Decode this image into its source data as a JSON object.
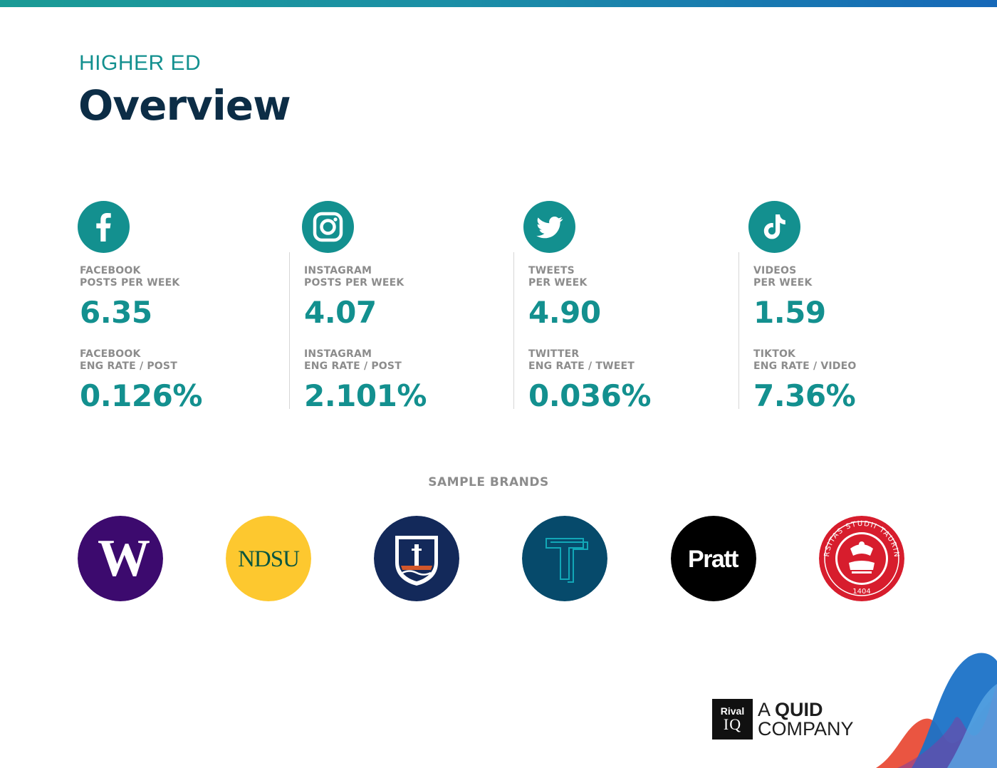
{
  "header": {
    "kicker": "HIGHER ED",
    "title": "Overview"
  },
  "stats": [
    {
      "platform": "facebook",
      "icon": "facebook-icon",
      "label1_line1": "FACEBOOK",
      "label1_line2": "POSTS PER WEEK",
      "value1": "6.35",
      "label2_line1": "FACEBOOK",
      "label2_line2": "ENG RATE / POST",
      "value2": "0.126%"
    },
    {
      "platform": "instagram",
      "icon": "instagram-icon",
      "label1_line1": "INSTAGRAM",
      "label1_line2": "POSTS PER WEEK",
      "value1": "4.07",
      "label2_line1": "INSTAGRAM",
      "label2_line2": "ENG RATE / POST",
      "value2": "2.101%"
    },
    {
      "platform": "twitter",
      "icon": "twitter-icon",
      "label1_line1": "TWEETS",
      "label1_line2": "PER WEEK",
      "value1": "4.90",
      "label2_line1": "TWITTER",
      "label2_line2": "ENG RATE / TWEET",
      "value2": "0.036%"
    },
    {
      "platform": "tiktok",
      "icon": "tiktok-icon",
      "label1_line1": "VIDEOS",
      "label1_line2": "PER WEEK",
      "value1": "1.59",
      "label2_line1": "TIKTOK",
      "label2_line2": "ENG RATE / VIDEO",
      "value2": "7.36%"
    }
  ],
  "brands": {
    "heading": "SAMPLE BRANDS",
    "logos": [
      {
        "name": "washington-logo",
        "text": "W"
      },
      {
        "name": "ndsu-logo",
        "text": "NDSU"
      },
      {
        "name": "shield-lighthouse-logo"
      },
      {
        "name": "t-logo"
      },
      {
        "name": "pratt-logo",
        "text": "Pratt"
      },
      {
        "name": "torino-seal-logo",
        "text": "UNIVERSITAS STUDII TAURINENSIS 1404"
      }
    ]
  },
  "footer": {
    "riq_top": "Rival",
    "riq_bottom": "IQ",
    "tagline_line1_a": "A ",
    "tagline_line1_b": "QUID",
    "tagline_line2": "COMPANY"
  },
  "colors": {
    "accent": "#13908f",
    "title": "#0c2d46",
    "label": "#8c8c8c"
  }
}
